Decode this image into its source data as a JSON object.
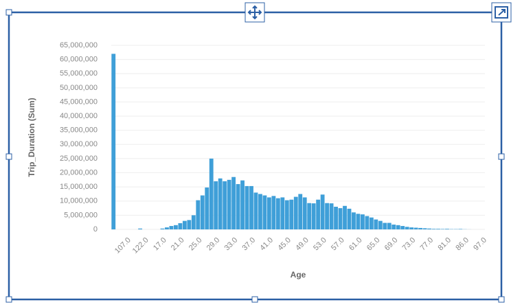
{
  "chart_data": {
    "type": "bar",
    "x_label": "Age",
    "y_label": "Trip_Duration (Sum)",
    "color": "#3f9fd8",
    "grid": true,
    "categories": [
      null,
      null,
      null,
      "107.0",
      null,
      null,
      null,
      "122.0",
      null,
      null,
      null,
      "17.0",
      null,
      null,
      null,
      "21.0",
      null,
      null,
      null,
      "25.0",
      null,
      null,
      null,
      "29.0",
      null,
      null,
      null,
      "33.0",
      null,
      null,
      null,
      "37.0",
      null,
      null,
      null,
      "41.0",
      null,
      null,
      null,
      "45.0",
      null,
      null,
      null,
      "49.0",
      null,
      null,
      null,
      "53.0",
      null,
      null,
      null,
      "57.0",
      null,
      null,
      null,
      "61.0",
      null,
      null,
      null,
      "65.0",
      null,
      null,
      null,
      "69.0",
      null,
      null,
      null,
      "73.0",
      null,
      null,
      null,
      "77.0",
      null,
      null,
      null,
      "81.0",
      null,
      null,
      null,
      "86.0",
      null,
      null,
      null,
      "97.0"
    ],
    "values": [
      62000000,
      0,
      0,
      0,
      0,
      0,
      300000,
      0,
      0,
      0,
      0,
      300000,
      700000,
      1200000,
      1500000,
      2200000,
      3000000,
      3300000,
      5000000,
      10300000,
      12000000,
      14800000,
      25000000,
      17000000,
      18000000,
      17000000,
      17500000,
      18500000,
      16000000,
      17300000,
      15300000,
      15300000,
      13000000,
      12500000,
      12000000,
      11300000,
      11800000,
      11000000,
      11300000,
      10300000,
      10500000,
      11500000,
      12500000,
      11300000,
      9300000,
      9200000,
      10500000,
      12300000,
      9300000,
      9200000,
      8000000,
      7500000,
      8300000,
      7300000,
      6000000,
      5500000,
      5300000,
      4700000,
      4200000,
      3500000,
      3000000,
      2300000,
      2300000,
      1700000,
      1500000,
      1200000,
      900000,
      700000,
      600000,
      500000,
      400000,
      300000,
      200000,
      200000,
      150000,
      200000,
      100000,
      100000,
      150000,
      50000,
      20000,
      0,
      0,
      0
    ],
    "ylim": [
      0,
      65000000
    ],
    "yticks": [
      0,
      {
        "value": 5000000,
        "label": "5,000,000"
      },
      {
        "value": 10000000,
        "label": "10,000,000"
      },
      {
        "value": 15000000,
        "label": "15,000,000"
      },
      {
        "value": 20000000,
        "label": "20,000,000"
      },
      {
        "value": 25000000,
        "label": "25,000,000"
      },
      {
        "value": 30000000,
        "label": "30,000,000"
      },
      {
        "value": 35000000,
        "label": "35,000,000"
      },
      {
        "value": 40000000,
        "label": "40,000,000"
      },
      {
        "value": 45000000,
        "label": "45,000,000"
      },
      {
        "value": 50000000,
        "label": "50,000,000"
      },
      {
        "value": 55000000,
        "label": "55,000,000"
      },
      {
        "value": 60000000,
        "label": "60,000,000"
      },
      {
        "value": 65000000,
        "label": "65,000,000"
      }
    ]
  }
}
